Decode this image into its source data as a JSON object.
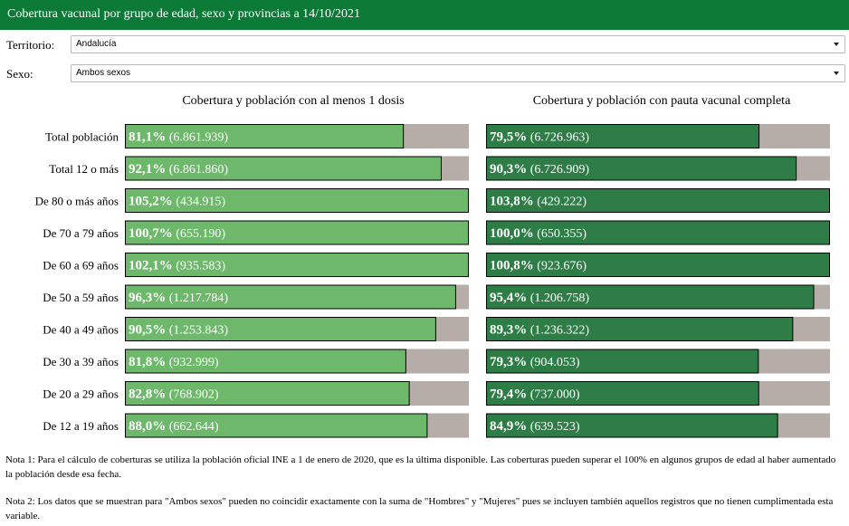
{
  "header": {
    "title": "Cobertura vacunal por grupo de edad, sexo y provincias a 14/10/2021"
  },
  "filters": {
    "territorio": {
      "label": "Territorio:",
      "value": "Andalucía"
    },
    "sexo": {
      "label": "Sexo:",
      "value": "Ambos sexos"
    }
  },
  "colors": {
    "header": "#0a7a36",
    "dose1": "#6db86a",
    "complete": "#2e7d46",
    "background_bar": "#b6ada9"
  },
  "chart_data": [
    {
      "type": "bar",
      "orientation": "horizontal",
      "title": "Cobertura y población con al menos 1 dosis",
      "categories": [
        "Total población",
        "Total 12 o más",
        "De 80 o más años",
        "De 70 a 79 años",
        "De 60 a 69 años",
        "De 50 a 59 años",
        "De 40 a 49 años",
        "De 30 a 39 años",
        "De 20 a 29 años",
        "De 12 a 19 años"
      ],
      "values": [
        81.1,
        92.1,
        105.2,
        100.7,
        102.1,
        96.3,
        90.5,
        81.8,
        82.8,
        88.0
      ],
      "value_labels": [
        "81,1%",
        "92,1%",
        "105,2%",
        "100,7%",
        "102,1%",
        "96,3%",
        "90,5%",
        "81,8%",
        "82,8%",
        "88,0%"
      ],
      "population_labels": [
        "(6.861.939)",
        "(6.861.860)",
        "(434.915)",
        "(655.190)",
        "(935.583)",
        "(1.217.784)",
        "(1.253.843)",
        "(932.999)",
        "(768.902)",
        "(662.644)"
      ],
      "xlim": [
        0,
        100
      ],
      "color": "#6db86a"
    },
    {
      "type": "bar",
      "orientation": "horizontal",
      "title": "Cobertura y población con pauta vacunal completa",
      "categories": [
        "Total población",
        "Total 12 o más",
        "De 80 o más años",
        "De 70 a 79 años",
        "De 60 a 69 años",
        "De 50 a 59 años",
        "De 40 a 49 años",
        "De 30 a 39 años",
        "De 20 a 29 años",
        "De 12 a 19 años"
      ],
      "values": [
        79.5,
        90.3,
        103.8,
        100.0,
        100.8,
        95.4,
        89.3,
        79.3,
        79.4,
        84.9
      ],
      "value_labels": [
        "79,5%",
        "90,3%",
        "103,8%",
        "100,0%",
        "100,8%",
        "95,4%",
        "89,3%",
        "79,3%",
        "79,4%",
        "84,9%"
      ],
      "population_labels": [
        "(6.726.963)",
        "(6.726.909)",
        "(429.222)",
        "(650.355)",
        "(923.676)",
        "(1.206.758)",
        "(1.236.322)",
        "(904.053)",
        "(737.000)",
        "(639.523)"
      ],
      "xlim": [
        0,
        100
      ],
      "color": "#2e7d46"
    }
  ],
  "notes": {
    "note1": "Nota 1: Para el cálculo de coberturas se utiliza la población oficial INE a 1 de enero de 2020, que es la última disponible. Las coberturas pueden superar el 100% en algunos grupos de edad al haber aumentado la población desde esa fecha.",
    "note2": "Nota 2: Los datos que se muestran para \"Ambos sexos\" pueden no coincidir exactamente con la suma de \"Hombres\" y \"Mujeres\" pues se incluyen también aquellos registros que no tienen cumplimentada esta variable."
  }
}
